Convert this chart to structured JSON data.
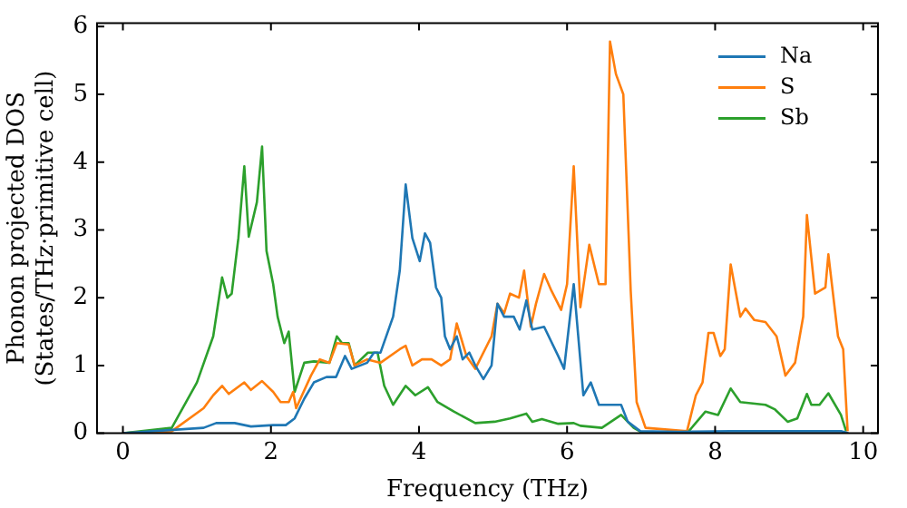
{
  "chart_data": {
    "type": "line",
    "xlabel": "Frequency (THz)",
    "ylabel": "Phonon projected DOS\n(States/THz·primitive cell)",
    "xlim": [
      -0.35,
      10.2
    ],
    "ylim": [
      0,
      6.05
    ],
    "xticks": [
      0,
      2,
      4,
      6,
      8,
      10
    ],
    "yticks": [
      0,
      1,
      2,
      3,
      4,
      5,
      6
    ],
    "grid": false,
    "legend": "top right",
    "marker": "none",
    "line_style": "solid",
    "series": [
      {
        "name": "Na",
        "color": "#1f77b4",
        "x": [
          0,
          1.09,
          1.26,
          1.51,
          1.73,
          2.03,
          2.2,
          2.32,
          2.45,
          2.58,
          2.75,
          2.88,
          3.0,
          3.09,
          3.3,
          3.39,
          3.48,
          3.65,
          3.74,
          3.82,
          3.91,
          4.01,
          4.08,
          4.15,
          4.23,
          4.3,
          4.35,
          4.42,
          4.51,
          4.59,
          4.68,
          4.76,
          4.87,
          4.98,
          5.06,
          5.15,
          5.28,
          5.36,
          5.45,
          5.53,
          5.69,
          5.88,
          5.96,
          6.09,
          6.22,
          6.32,
          6.43,
          6.56,
          6.73,
          6.82,
          6.99,
          7.5,
          8.2,
          9.7,
          9.8
        ],
        "values": [
          0,
          0.08,
          0.15,
          0.15,
          0.1,
          0.12,
          0.12,
          0.22,
          0.51,
          0.75,
          0.83,
          0.83,
          1.14,
          0.95,
          1.04,
          1.19,
          1.19,
          1.72,
          2.4,
          3.67,
          2.88,
          2.54,
          2.95,
          2.81,
          2.15,
          2.0,
          1.43,
          1.24,
          1.43,
          1.09,
          1.19,
          1.0,
          0.8,
          1.0,
          1.91,
          1.72,
          1.72,
          1.53,
          1.96,
          1.53,
          1.57,
          1.14,
          0.95,
          2.2,
          0.56,
          0.75,
          0.42,
          0.42,
          0.42,
          0.17,
          0.03,
          0.02,
          0.03,
          0.03,
          0
        ]
      },
      {
        "name": "S",
        "color": "#ff7f0e",
        "x": [
          0,
          0.66,
          1.09,
          1.22,
          1.34,
          1.43,
          1.64,
          1.73,
          1.88,
          2.03,
          2.13,
          2.24,
          2.3,
          2.34,
          2.54,
          2.66,
          2.79,
          2.89,
          3.05,
          3.13,
          3.3,
          3.48,
          3.74,
          3.82,
          3.91,
          4.04,
          4.17,
          4.3,
          4.42,
          4.51,
          4.64,
          4.76,
          4.98,
          5.06,
          5.15,
          5.23,
          5.35,
          5.42,
          5.51,
          5.58,
          5.69,
          5.79,
          5.92,
          6.0,
          6.09,
          6.18,
          6.3,
          6.43,
          6.52,
          6.58,
          6.66,
          6.76,
          6.86,
          6.94,
          7.06,
          7.62,
          7.74,
          7.83,
          7.91,
          7.98,
          8.07,
          8.13,
          8.21,
          8.34,
          8.41,
          8.53,
          8.68,
          8.83,
          8.95,
          9.08,
          9.19,
          9.24,
          9.35,
          9.49,
          9.53,
          9.66,
          9.73,
          9.79
        ],
        "values": [
          0,
          0.03,
          0.37,
          0.56,
          0.7,
          0.58,
          0.75,
          0.64,
          0.77,
          0.61,
          0.46,
          0.46,
          0.61,
          0.37,
          0.85,
          1.09,
          1.04,
          1.33,
          1.31,
          1.0,
          1.09,
          1.04,
          1.24,
          1.29,
          1.0,
          1.09,
          1.09,
          1.0,
          1.09,
          1.62,
          1.14,
          0.95,
          1.43,
          1.91,
          1.77,
          2.06,
          2.0,
          2.4,
          1.57,
          1.91,
          2.35,
          2.1,
          1.82,
          2.2,
          3.94,
          1.86,
          2.78,
          2.2,
          2.2,
          5.78,
          5.3,
          5.0,
          2.1,
          0.46,
          0.08,
          0.03,
          0.56,
          0.75,
          1.48,
          1.48,
          1.14,
          1.24,
          2.49,
          1.72,
          1.84,
          1.67,
          1.64,
          1.43,
          0.85,
          1.04,
          1.72,
          3.22,
          2.06,
          2.15,
          2.64,
          1.43,
          1.24,
          0.03
        ]
      },
      {
        "name": "Sb",
        "color": "#2ca02c",
        "x": [
          0,
          0.66,
          1.0,
          1.22,
          1.34,
          1.41,
          1.47,
          1.56,
          1.64,
          1.7,
          1.81,
          1.88,
          1.94,
          2.03,
          2.09,
          2.18,
          2.24,
          2.32,
          2.45,
          2.58,
          2.79,
          2.89,
          2.96,
          3.05,
          3.13,
          3.31,
          3.44,
          3.53,
          3.65,
          3.82,
          3.95,
          4.12,
          4.25,
          4.47,
          4.76,
          5.02,
          5.23,
          5.45,
          5.53,
          5.66,
          5.88,
          6.09,
          6.18,
          6.47,
          6.73,
          6.9,
          7.03,
          7.62,
          7.87,
          8.04,
          8.21,
          8.34,
          8.68,
          8.81,
          8.98,
          9.11,
          9.24,
          9.3,
          9.41,
          9.53,
          9.7,
          9.77
        ],
        "values": [
          0,
          0.08,
          0.75,
          1.43,
          2.3,
          2.0,
          2.06,
          2.88,
          3.94,
          2.9,
          3.41,
          4.23,
          2.69,
          2.2,
          1.72,
          1.33,
          1.5,
          0.61,
          1.04,
          1.06,
          1.04,
          1.43,
          1.33,
          1.33,
          1.0,
          1.19,
          1.19,
          0.7,
          0.42,
          0.7,
          0.56,
          0.68,
          0.46,
          0.32,
          0.15,
          0.17,
          0.22,
          0.29,
          0.17,
          0.21,
          0.14,
          0.15,
          0.11,
          0.08,
          0.27,
          0.08,
          0,
          0,
          0.32,
          0.27,
          0.66,
          0.46,
          0.42,
          0.35,
          0.17,
          0.22,
          0.58,
          0.42,
          0.42,
          0.59,
          0.27,
          0.03
        ]
      }
    ]
  }
}
